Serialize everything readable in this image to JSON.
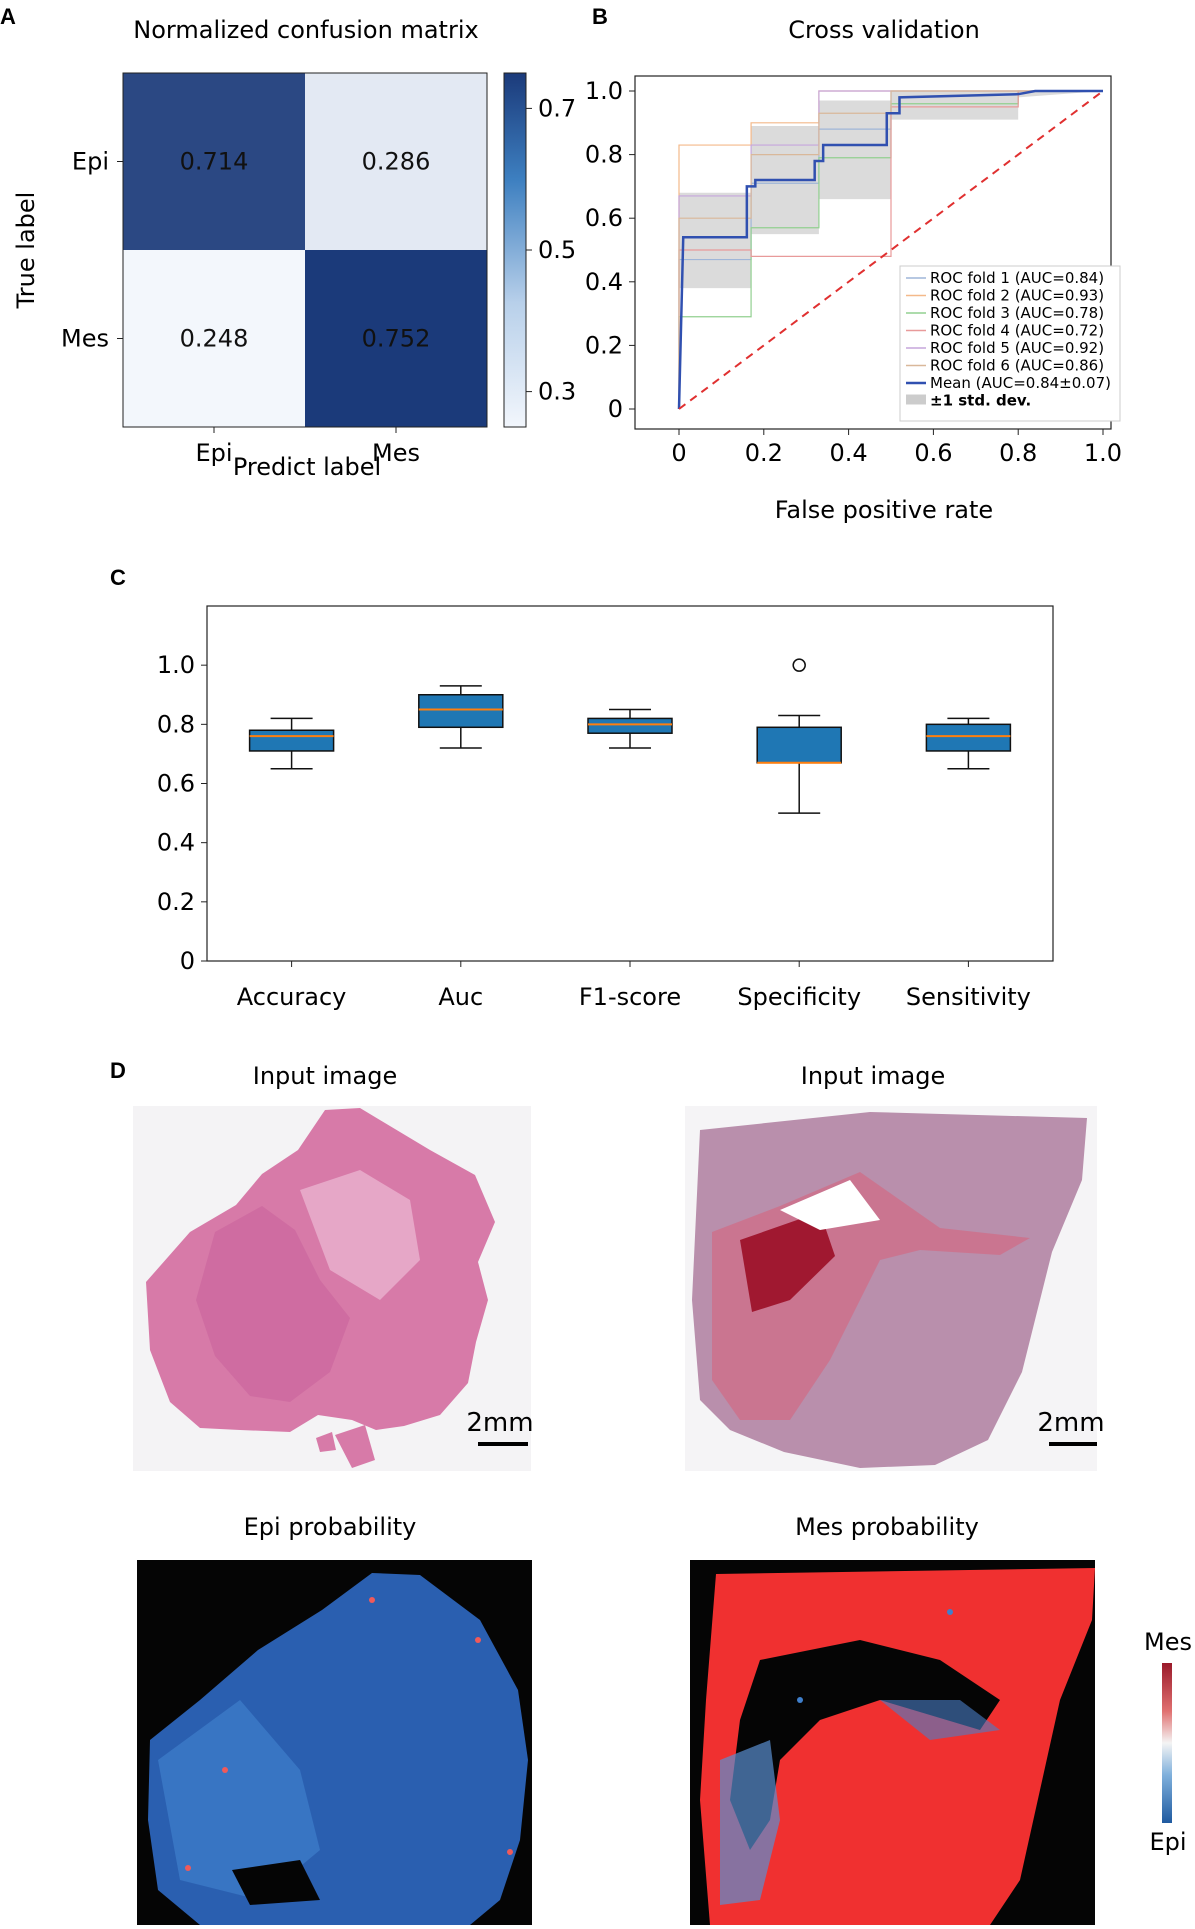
{
  "panel_labels": {
    "a": "A",
    "b": "B",
    "c": "C",
    "d": "D"
  },
  "colors": {
    "blue_dark": "#1b3a7a",
    "blue_light": "#e6eef8",
    "blue_pale": "#f3f7fc",
    "box_fill": "#1f77b4",
    "median": "#ff7f0e",
    "roc_mean": "#3050b0",
    "chance": "#e03030",
    "band": "#cccccc",
    "heat_red": "#f03030",
    "heat_blue": "#2a5fb0",
    "tissue_pink": "#d77aa8",
    "tissue_mauve": "#b98fac"
  },
  "chart_data": [
    {
      "type": "heatmap",
      "title": "Normalized confusion matrix",
      "xlabel": "Predict label",
      "ylabel": "True label",
      "x_categories": [
        "Epi",
        "Mes"
      ],
      "y_categories": [
        "Epi",
        "Mes"
      ],
      "values": [
        [
          0.714,
          0.286
        ],
        [
          0.248,
          0.752
        ]
      ],
      "colorbar": {
        "range": [
          0.25,
          0.75
        ],
        "ticks": [
          0.7,
          0.5,
          0.3
        ]
      }
    },
    {
      "type": "line",
      "title": "Cross validation",
      "xlabel": "False positive rate",
      "ylabel": "",
      "xlim": [
        0,
        1
      ],
      "ylim": [
        0,
        1
      ],
      "x_ticks": [
        "0",
        "0.2",
        "0.4",
        "0.6",
        "0.8",
        "1.0"
      ],
      "y_ticks": [
        "0",
        "0.2",
        "0.4",
        "0.6",
        "0.8",
        "1.0"
      ],
      "legend_position": "bottom-right",
      "series": [
        {
          "name": "ROC fold 1 (AUC=0.84)",
          "color": "#9fb6d8",
          "points": [
            [
              0,
              0
            ],
            [
              0,
              0.47
            ],
            [
              0.17,
              0.47
            ],
            [
              0.17,
              0.71
            ],
            [
              0.33,
              0.71
            ],
            [
              0.33,
              0.88
            ],
            [
              0.5,
              0.88
            ],
            [
              0.5,
              1
            ],
            [
              1,
              1
            ]
          ]
        },
        {
          "name": "ROC fold 2 (AUC=0.93)",
          "color": "#f4b98a",
          "points": [
            [
              0,
              0
            ],
            [
              0,
              0.83
            ],
            [
              0.17,
              0.83
            ],
            [
              0.17,
              0.9
            ],
            [
              0.33,
              0.9
            ],
            [
              0.33,
              1
            ],
            [
              1,
              1
            ]
          ]
        },
        {
          "name": "ROC fold 3 (AUC=0.78)",
          "color": "#92d090",
          "points": [
            [
              0,
              0
            ],
            [
              0,
              0.29
            ],
            [
              0.17,
              0.29
            ],
            [
              0.17,
              0.57
            ],
            [
              0.33,
              0.57
            ],
            [
              0.33,
              0.79
            ],
            [
              0.5,
              0.79
            ],
            [
              0.5,
              0.96
            ],
            [
              0.8,
              0.96
            ],
            [
              0.8,
              1
            ],
            [
              1,
              1
            ]
          ]
        },
        {
          "name": "ROC fold 4 (AUC=0.72)",
          "color": "#e89a9a",
          "points": [
            [
              0,
              0
            ],
            [
              0,
              0.5
            ],
            [
              0.17,
              0.5
            ],
            [
              0.17,
              0.48
            ],
            [
              0.5,
              0.48
            ],
            [
              0.5,
              0.95
            ],
            [
              0.8,
              0.95
            ],
            [
              0.8,
              1
            ],
            [
              1,
              1
            ]
          ]
        },
        {
          "name": "ROC fold 5 (AUC=0.92)",
          "color": "#c6a6dc",
          "points": [
            [
              0,
              0
            ],
            [
              0,
              0.67
            ],
            [
              0.17,
              0.67
            ],
            [
              0.17,
              0.83
            ],
            [
              0.33,
              0.83
            ],
            [
              0.33,
              1
            ],
            [
              1,
              1
            ]
          ]
        },
        {
          "name": "ROC fold 6 (AUC=0.86)",
          "color": "#d9b89a",
          "points": [
            [
              0,
              0
            ],
            [
              0,
              0.6
            ],
            [
              0.17,
              0.6
            ],
            [
              0.17,
              0.8
            ],
            [
              0.33,
              0.8
            ],
            [
              0.33,
              0.93
            ],
            [
              0.5,
              0.93
            ],
            [
              0.5,
              1
            ],
            [
              1,
              1
            ]
          ]
        },
        {
          "name": "Mean (AUC=0.84±0.07)",
          "color": "#3050b0",
          "width": 2.5,
          "points": [
            [
              0,
              0
            ],
            [
              0.01,
              0.54
            ],
            [
              0.16,
              0.54
            ],
            [
              0.16,
              0.7
            ],
            [
              0.18,
              0.7
            ],
            [
              0.18,
              0.72
            ],
            [
              0.32,
              0.72
            ],
            [
              0.32,
              0.78
            ],
            [
              0.34,
              0.78
            ],
            [
              0.34,
              0.83
            ],
            [
              0.49,
              0.83
            ],
            [
              0.49,
              0.93
            ],
            [
              0.52,
              0.93
            ],
            [
              0.52,
              0.98
            ],
            [
              0.8,
              0.99
            ],
            [
              0.84,
              1
            ],
            [
              1,
              1
            ]
          ]
        }
      ],
      "band": {
        "name": "±1 std. dev.",
        "upper": [
          [
            0,
            0.68
          ],
          [
            0.17,
            0.68
          ],
          [
            0.17,
            0.89
          ],
          [
            0.33,
            0.89
          ],
          [
            0.33,
            0.97
          ],
          [
            0.5,
            0.97
          ],
          [
            0.5,
            1
          ],
          [
            1,
            1
          ]
        ],
        "lower": [
          [
            0,
            0.38
          ],
          [
            0.17,
            0.38
          ],
          [
            0.17,
            0.55
          ],
          [
            0.33,
            0.55
          ],
          [
            0.33,
            0.66
          ],
          [
            0.5,
            0.66
          ],
          [
            0.5,
            0.91
          ],
          [
            0.8,
            0.91
          ],
          [
            0.8,
            0.98
          ],
          [
            1,
            1
          ]
        ]
      },
      "chance_line": [
        [
          0,
          0
        ],
        [
          1,
          1
        ]
      ]
    },
    {
      "type": "box",
      "title": "",
      "ylim": [
        0,
        1.2
      ],
      "y_ticks": [
        "0",
        "0.2",
        "0.4",
        "0.6",
        "0.8",
        "1.0"
      ],
      "categories": [
        "Accuracy",
        "Auc",
        "F1-score",
        "Specificity",
        "Sensitivity"
      ],
      "boxes": [
        {
          "min": 0.65,
          "q1": 0.71,
          "median": 0.76,
          "q3": 0.78,
          "max": 0.82,
          "outliers": []
        },
        {
          "min": 0.72,
          "q1": 0.79,
          "median": 0.85,
          "q3": 0.9,
          "max": 0.93,
          "outliers": []
        },
        {
          "min": 0.72,
          "q1": 0.77,
          "median": 0.8,
          "q3": 0.82,
          "max": 0.85,
          "outliers": []
        },
        {
          "min": 0.5,
          "q1": 0.67,
          "median": 0.67,
          "q3": 0.79,
          "max": 0.83,
          "outliers": [
            1.0
          ]
        },
        {
          "min": 0.65,
          "q1": 0.71,
          "median": 0.76,
          "q3": 0.8,
          "max": 0.82,
          "outliers": []
        }
      ]
    }
  ],
  "panel_d": {
    "titles": {
      "input_left": "Input image",
      "input_right": "Input image",
      "epi_prob": "Epi probability",
      "mes_prob": "Mes probability"
    },
    "scale_bar": "2mm",
    "legend": {
      "top": "Mes",
      "bottom": "Epi"
    }
  }
}
